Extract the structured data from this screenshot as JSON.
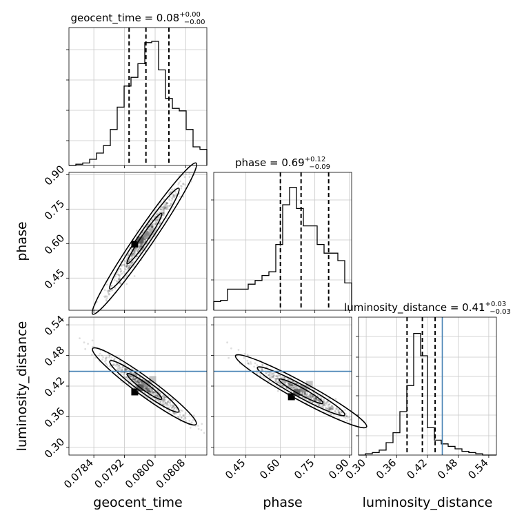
{
  "chart_data": {
    "type": "corner",
    "parameters": [
      "geocent_time",
      "phase",
      "luminosity_distance"
    ],
    "titles": [
      {
        "param": "geocent_time",
        "text": "geocent_time = 0.08",
        "plus": "+0.00",
        "minus": "−0.00"
      },
      {
        "param": "phase",
        "text": "phase = 0.69",
        "plus": "+0.12",
        "minus": "−0.09"
      },
      {
        "param": "luminosity_distance",
        "text": "luminosity_distance = 0.41",
        "plus": "+0.03",
        "minus": "−0.03"
      }
    ],
    "ranges": {
      "geocent_time": [
        0.07775,
        0.08135
      ],
      "phase": [
        0.31,
        0.91
      ],
      "luminosity_distance": [
        0.285,
        0.555
      ]
    },
    "ticks": {
      "geocent_time": {
        "values": [
          0.0784,
          0.0792,
          0.08,
          0.0808
        ],
        "labels": [
          "0.0784",
          "0.0792",
          "0.0800",
          "0.0808"
        ]
      },
      "phase": {
        "values": [
          0.45,
          0.6,
          0.75,
          0.9
        ],
        "labels": [
          "0.45",
          "0.60",
          "0.75",
          "0.90"
        ]
      },
      "luminosity_distance": {
        "values": [
          0.3,
          0.36,
          0.42,
          0.48,
          0.54
        ],
        "labels": [
          "0.30",
          "0.36",
          "0.42",
          "0.48",
          "0.54"
        ]
      }
    },
    "diag_yticks": {
      "geocent_time": [
        0.18,
        0.4,
        0.62,
        0.84
      ],
      "phase": [
        0.22,
        0.51,
        0.8
      ],
      "luminosity_distance": [
        0.14,
        0.29,
        0.43,
        0.57,
        0.71,
        0.86
      ]
    },
    "histograms": {
      "geocent_time": {
        "bin_start": 0.07775,
        "bin_width": 0.00018,
        "counts": [
          0.0,
          0.01,
          0.02,
          0.05,
          0.1,
          0.16,
          0.29,
          0.47,
          0.64,
          0.71,
          0.82,
          0.99,
          1.0,
          0.77,
          0.54,
          0.46,
          0.44,
          0.29,
          0.15,
          0.13
        ]
      },
      "phase": {
        "bin_start": 0.31,
        "bin_width": 0.03,
        "counts": [
          0.07,
          0.08,
          0.17,
          0.17,
          0.17,
          0.21,
          0.24,
          0.28,
          0.31,
          0.53,
          0.85,
          0.99,
          0.82,
          0.68,
          0.68,
          0.53,
          0.46,
          0.46,
          0.4,
          0.22
        ]
      },
      "luminosity_distance": {
        "bin_start": 0.285,
        "bin_width": 0.0135,
        "counts": [
          0.0,
          0.01,
          0.02,
          0.04,
          0.1,
          0.18,
          0.35,
          0.56,
          0.98,
          0.8,
          0.22,
          0.12,
          0.09,
          0.07,
          0.05,
          0.03,
          0.02,
          0.01,
          0.0,
          0.0
        ]
      }
    },
    "quantiles": {
      "geocent_time": [
        0.07932,
        0.07976,
        0.08036
      ],
      "phase": [
        0.6,
        0.69,
        0.81
      ],
      "luminosity_distance": [
        0.38,
        0.41,
        0.435
      ]
    },
    "truths": {
      "luminosity_distance": 0.449
    },
    "correlations": [
      {
        "x": "geocent_time",
        "y": "phase",
        "slope": 243.5,
        "intercept": -18.79,
        "sx": 0.00045,
        "resid": 0.025,
        "center": 0.07972
      },
      {
        "x": "geocent_time",
        "y": "luminosity_distance",
        "slope": -55.0,
        "intercept": 4.804,
        "sx": 0.00045,
        "resid": 0.008,
        "center": 0.07972
      },
      {
        "x": "phase",
        "y": "luminosity_distance",
        "slope": -0.245,
        "intercept": 0.579,
        "sx": 0.095,
        "resid": 0.008,
        "center": 0.69
      }
    ],
    "truth_color": "#4682b4",
    "grid": true
  }
}
